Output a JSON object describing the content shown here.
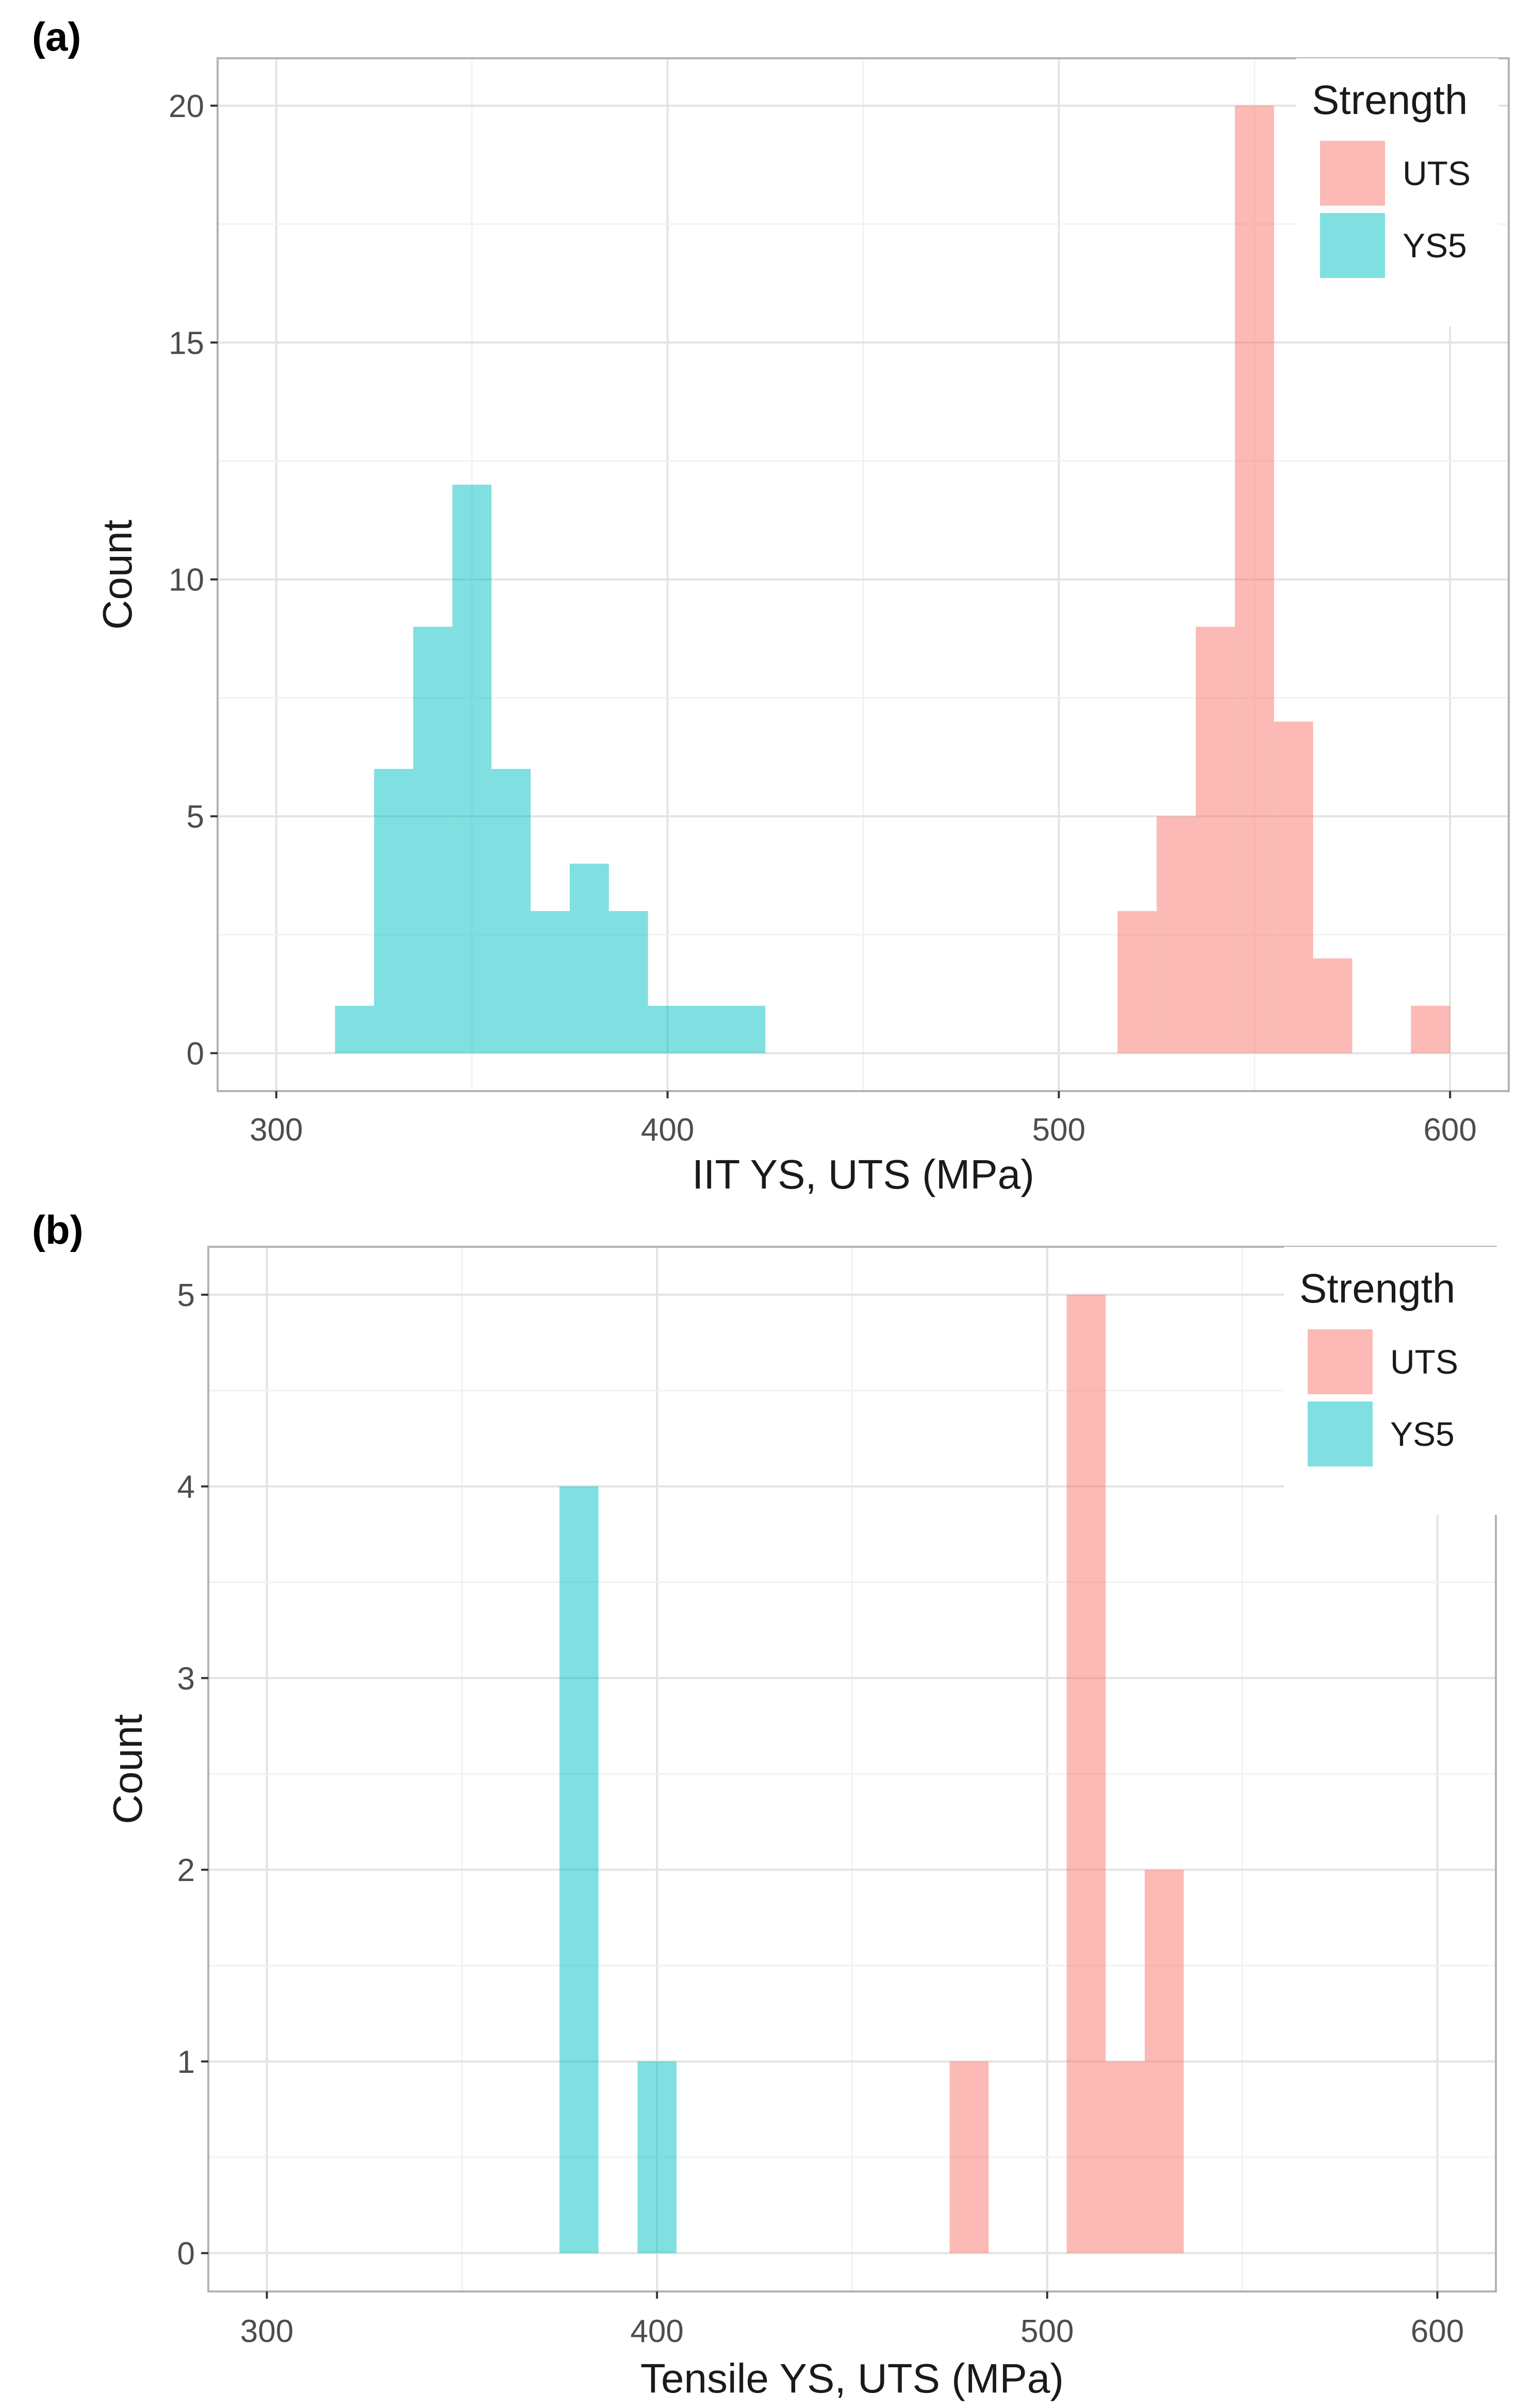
{
  "chart_data": [
    {
      "type": "histogram",
      "panel_label": "(a)",
      "xlabel": "IIT YS, UTS (MPa)",
      "ylabel": "Count",
      "xlim": [
        285,
        615
      ],
      "ylim": [
        -0.8,
        21
      ],
      "xticks": [
        300,
        400,
        500,
        600
      ],
      "yticks": [
        0,
        5,
        10,
        15,
        20
      ],
      "bin_width": 10,
      "legend": {
        "title": "Strength",
        "position": "top-right"
      },
      "series": [
        {
          "name": "UTS",
          "color": "#F8766D",
          "bins": [
            [
              515,
              3
            ],
            [
              525,
              5
            ],
            [
              535,
              9
            ],
            [
              545,
              20
            ],
            [
              555,
              7
            ],
            [
              565,
              2
            ],
            [
              590,
              1
            ]
          ]
        },
        {
          "name": "YS5",
          "color": "#00BFC4",
          "bins": [
            [
              315,
              1
            ],
            [
              325,
              6
            ],
            [
              335,
              9
            ],
            [
              345,
              12
            ],
            [
              355,
              6
            ],
            [
              365,
              3
            ],
            [
              375,
              4
            ],
            [
              385,
              3
            ],
            [
              395,
              1
            ],
            [
              405,
              1
            ],
            [
              415,
              1
            ]
          ]
        }
      ]
    },
    {
      "type": "histogram",
      "panel_label": "(b)",
      "xlabel": "Tensile YS, UTS (MPa)",
      "ylabel": "Count",
      "xlim": [
        285,
        615
      ],
      "ylim": [
        -0.2,
        5.25
      ],
      "xticks": [
        300,
        400,
        500,
        600
      ],
      "yticks": [
        0,
        1,
        2,
        3,
        4,
        5
      ],
      "bin_width": 10,
      "legend": {
        "title": "Strength",
        "position": "top-right"
      },
      "series": [
        {
          "name": "UTS",
          "color": "#F8766D",
          "bins": [
            [
              475,
              1
            ],
            [
              505,
              5
            ],
            [
              515,
              1
            ],
            [
              525,
              2
            ]
          ]
        },
        {
          "name": "YS5",
          "color": "#00BFC4",
          "bins": [
            [
              375,
              4
            ],
            [
              395,
              1
            ]
          ]
        }
      ]
    }
  ]
}
